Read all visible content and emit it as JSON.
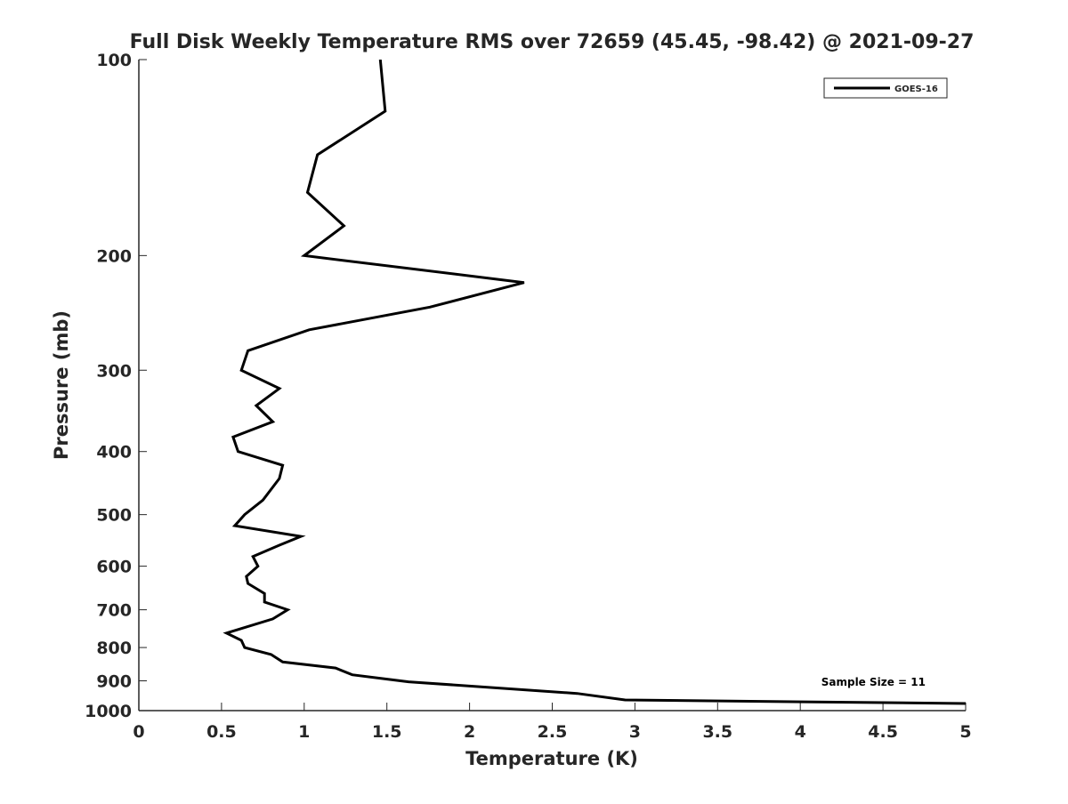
{
  "chart_data": {
    "type": "line",
    "title": "Full Disk Weekly Temperature RMS over 72659 (45.45, -98.42) @ 2021-09-27",
    "xlabel": "Temperature (K)",
    "ylabel": "Pressure (mb)",
    "xlim": [
      0,
      5
    ],
    "ylim": [
      100,
      1000
    ],
    "yscale": "log",
    "y_reversed": true,
    "grid": false,
    "xticks": [
      "0",
      "0.5",
      "1",
      "1.5",
      "2",
      "2.5",
      "3",
      "3.5",
      "4",
      "4.5",
      "5"
    ],
    "xtick_values": [
      0,
      0.5,
      1,
      1.5,
      2,
      2.5,
      3,
      3.5,
      4,
      4.5,
      5
    ],
    "yticks": [
      "100",
      "200",
      "300",
      "400",
      "500",
      "600",
      "700",
      "800",
      "900",
      "1000"
    ],
    "ytick_values": [
      100,
      200,
      300,
      400,
      500,
      600,
      700,
      800,
      900,
      1000
    ],
    "legend": {
      "entries": [
        "GOES-16"
      ],
      "placement": "top-right"
    },
    "annotation": "Sample Size = 11",
    "line_color": "#000000",
    "series": [
      {
        "name": "GOES-16",
        "x": [
          1.46,
          1.49,
          1.08,
          1.02,
          1.24,
          1.0,
          2.33,
          1.76,
          1.03,
          0.66,
          0.62,
          0.85,
          0.71,
          0.81,
          0.57,
          0.6,
          0.87,
          0.85,
          0.75,
          0.64,
          0.58,
          0.98,
          0.85,
          0.69,
          0.72,
          0.65,
          0.66,
          0.76,
          0.76,
          0.9,
          0.81,
          0.53,
          0.62,
          0.64,
          0.8,
          0.87,
          1.19,
          1.29,
          1.63,
          2.65,
          2.94,
          5.0
        ],
        "y": [
          100,
          120,
          140,
          160,
          180,
          200,
          220,
          240,
          260,
          280,
          300,
          320,
          340,
          360,
          380,
          400,
          420,
          440,
          475,
          500,
          520,
          540,
          557,
          580,
          600,
          622,
          638,
          661,
          681,
          700,
          723,
          760,
          780,
          800,
          820,
          842,
          860,
          881,
          903,
          941,
          963,
          975
        ]
      }
    ]
  }
}
